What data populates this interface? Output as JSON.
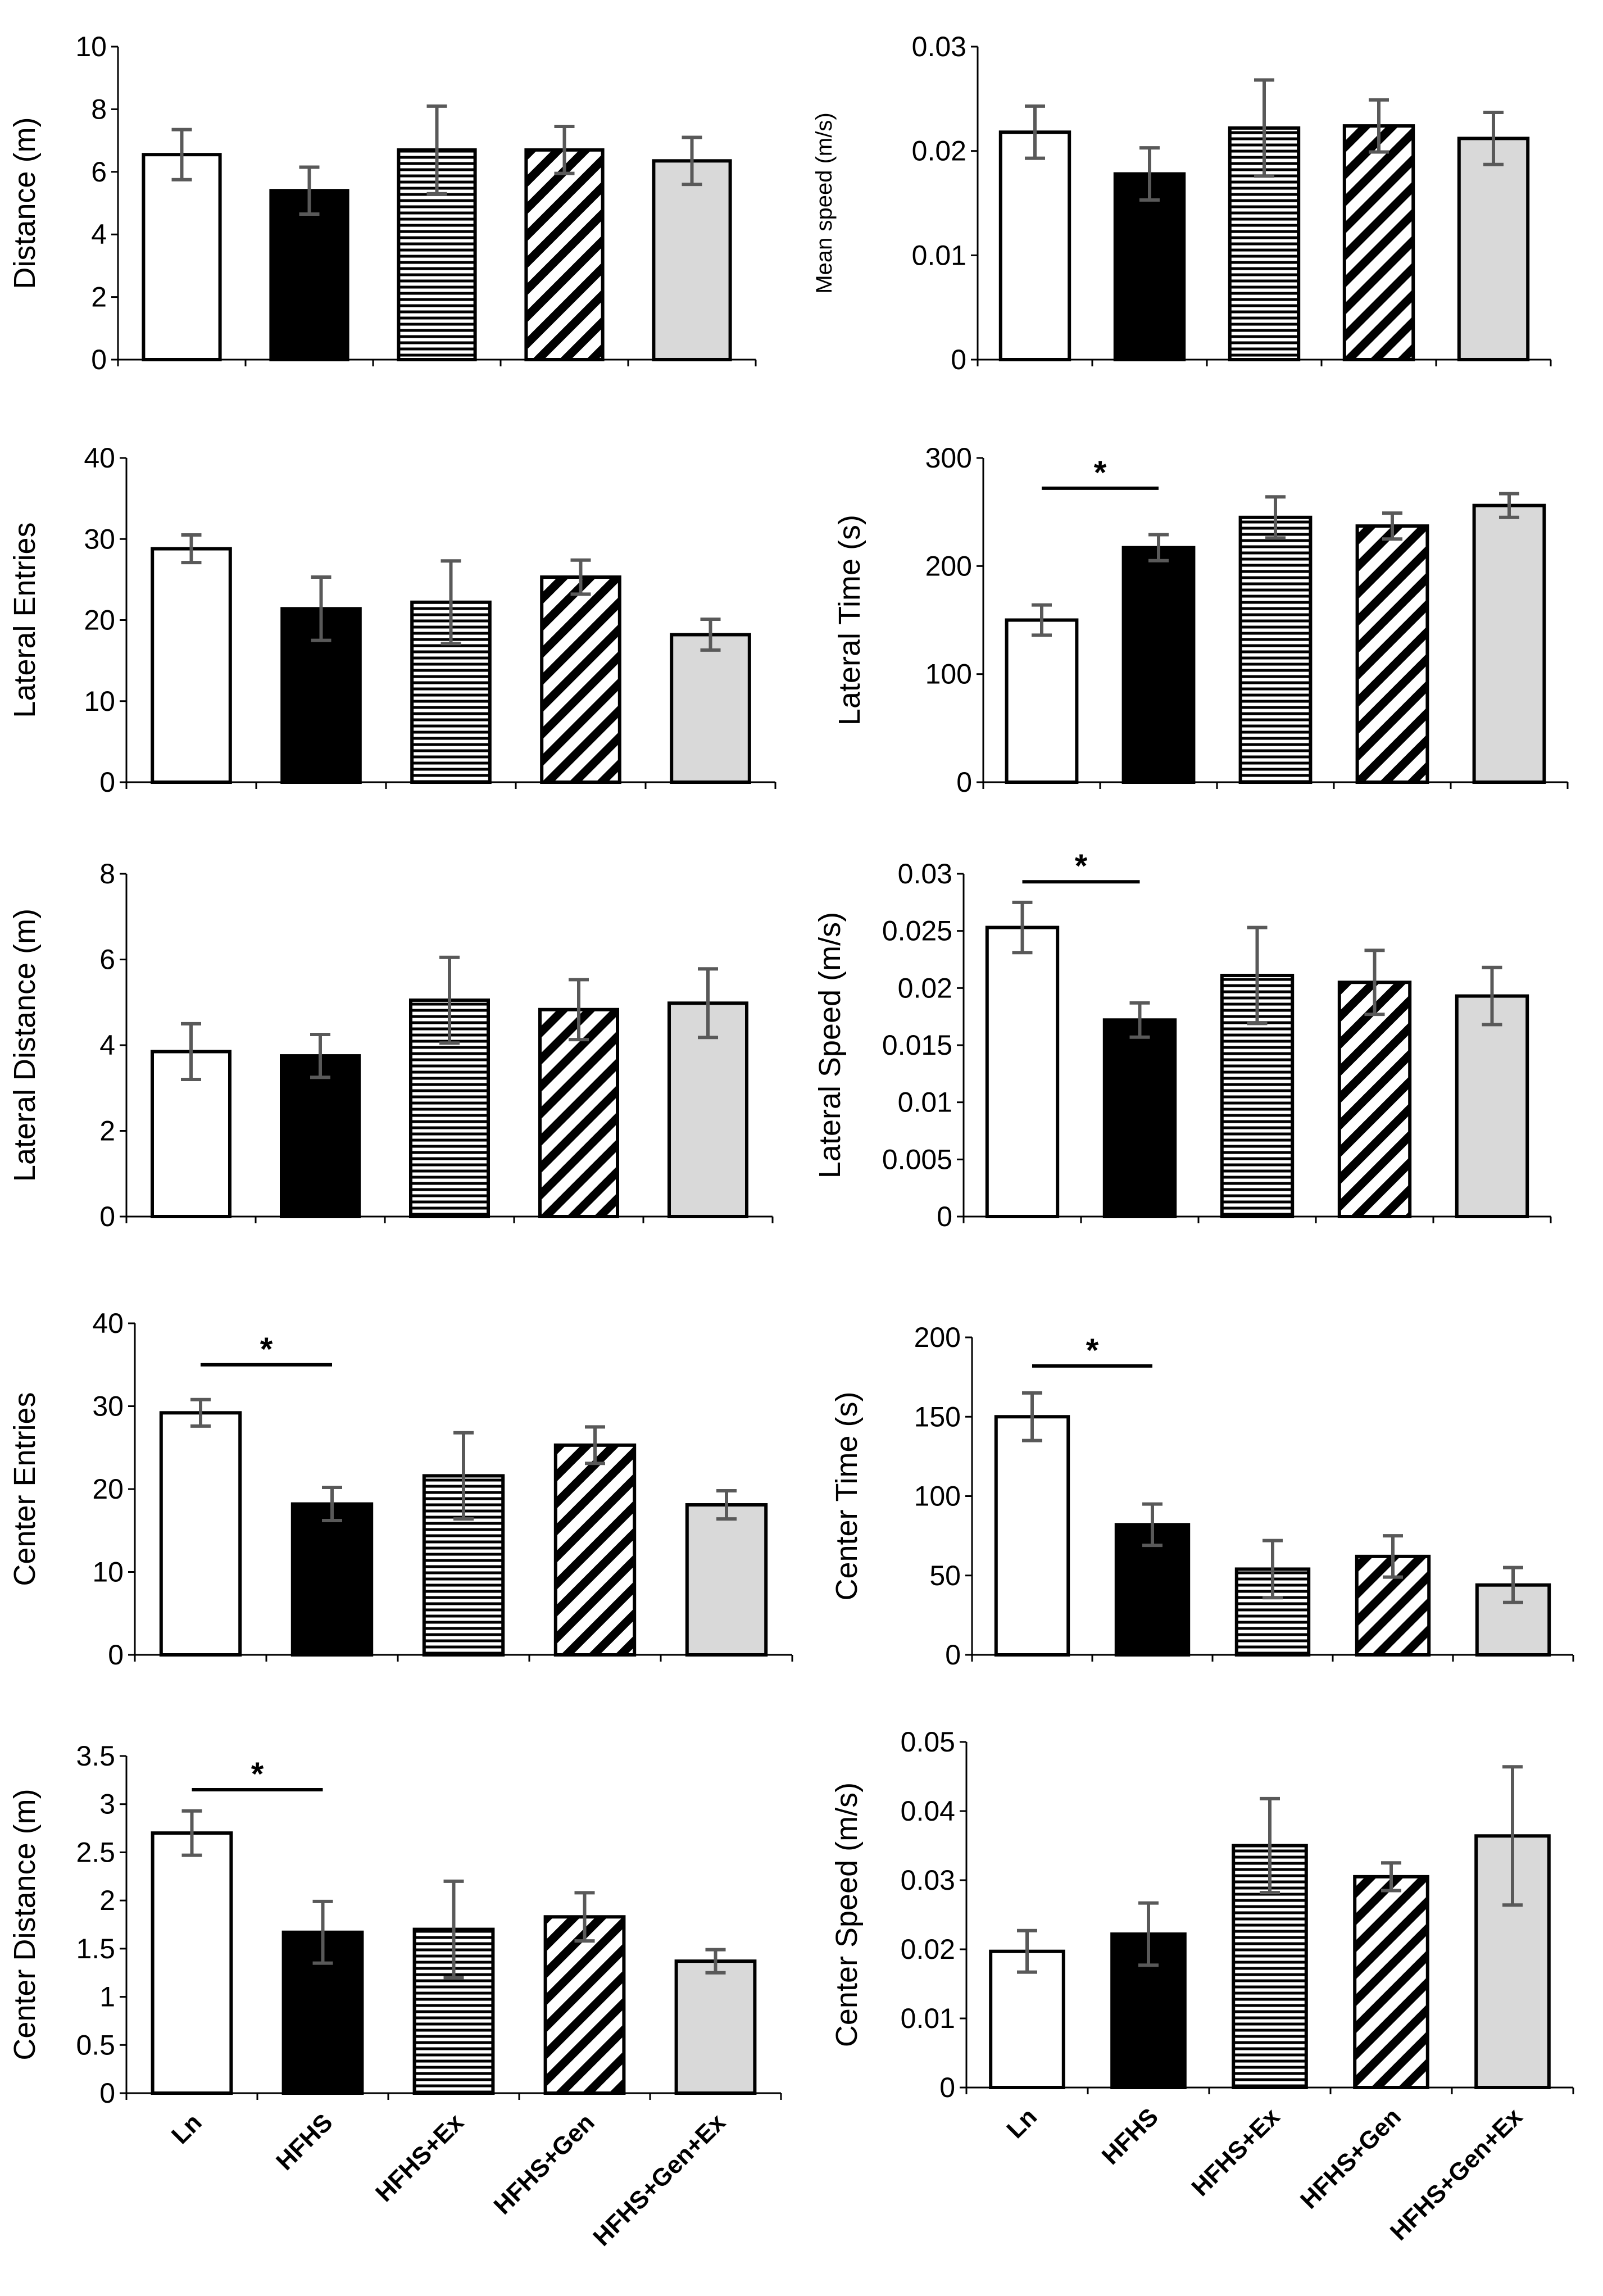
{
  "groups": [
    "Ln",
    "HFHS",
    "HFHS+Ex",
    "HFHS+Gen",
    "HFHS+Gen+Ex"
  ],
  "group_styles": [
    "white",
    "black",
    "horizontal-stripes",
    "diagonal-stripes",
    "light-gray"
  ],
  "colors": {
    "black": "#000000",
    "light_gray": "#d9d9d9",
    "error_bar": "#595959",
    "white": "#ffffff"
  },
  "chart_data": [
    {
      "type": "bar",
      "title": "",
      "xlabel": "",
      "ylabel": "Distance (m)",
      "categories": [
        "Ln",
        "HFHS",
        "HFHS+Ex",
        "HFHS+Gen",
        "HFHS+Gen+Ex"
      ],
      "values": [
        6.55,
        5.4,
        6.7,
        6.7,
        6.35
      ],
      "errors": [
        0.8,
        0.75,
        1.4,
        0.75,
        0.75
      ],
      "ylim": [
        0,
        10
      ],
      "yticks": [
        0,
        2,
        4,
        6,
        8,
        10
      ],
      "ytick_labels": [
        "0",
        "2",
        "4",
        "6",
        "8",
        "10"
      ],
      "significance": []
    },
    {
      "type": "bar",
      "title": "",
      "xlabel": "",
      "ylabel": "Mean speed (m/s)",
      "categories": [
        "Ln",
        "HFHS",
        "HFHS+Ex",
        "HFHS+Gen",
        "HFHS+Gen+Ex"
      ],
      "values": [
        0.0218,
        0.0178,
        0.0222,
        0.0224,
        0.0212
      ],
      "errors": [
        0.0025,
        0.0025,
        0.0046,
        0.0025,
        0.0025
      ],
      "ylim": [
        0,
        0.03
      ],
      "yticks": [
        0,
        0.01,
        0.02,
        0.03
      ],
      "ytick_labels": [
        "0",
        "0.01",
        "0.02",
        "0.03"
      ],
      "significance": []
    },
    {
      "type": "bar",
      "title": "",
      "xlabel": "",
      "ylabel": "Lateral Entries",
      "categories": [
        "Ln",
        "HFHS",
        "HFHS+Ex",
        "HFHS+Gen",
        "HFHS+Gen+Ex"
      ],
      "values": [
        28.8,
        21.4,
        22.2,
        25.3,
        18.2
      ],
      "errors": [
        1.7,
        3.9,
        5.1,
        2.1,
        1.9
      ],
      "ylim": [
        0,
        40
      ],
      "yticks": [
        0,
        10,
        20,
        30,
        40
      ],
      "ytick_labels": [
        "0",
        "10",
        "20",
        "30",
        "40"
      ],
      "significance": []
    },
    {
      "type": "bar",
      "title": "",
      "xlabel": "",
      "ylabel": "Lateral Time (s)",
      "categories": [
        "Ln",
        "HFHS",
        "HFHS+Ex",
        "HFHS+Gen",
        "HFHS+Gen+Ex"
      ],
      "values": [
        150,
        217,
        245,
        237,
        256
      ],
      "errors": [
        14,
        12,
        19,
        12,
        11
      ],
      "ylim": [
        0,
        300
      ],
      "yticks": [
        0,
        100,
        200,
        300
      ],
      "ytick_labels": [
        "0",
        "100",
        "200",
        "300"
      ],
      "significance": [
        {
          "from": 0,
          "to": 1,
          "level": 272,
          "label": "*"
        }
      ]
    },
    {
      "type": "bar",
      "title": "",
      "xlabel": "",
      "ylabel": "Lateral Distance (m)",
      "categories": [
        "Ln",
        "HFHS",
        "HFHS+Ex",
        "HFHS+Gen",
        "HFHS+Gen+Ex"
      ],
      "values": [
        3.85,
        3.75,
        5.05,
        4.83,
        4.98
      ],
      "errors": [
        0.65,
        0.5,
        1.0,
        0.7,
        0.8
      ],
      "ylim": [
        0,
        8
      ],
      "yticks": [
        0,
        2,
        4,
        6,
        8
      ],
      "ytick_labels": [
        "0",
        "2",
        "4",
        "6",
        "8"
      ],
      "significance": []
    },
    {
      "type": "bar",
      "title": "",
      "xlabel": "",
      "ylabel": "Lateral Speed (m/s)",
      "categories": [
        "Ln",
        "HFHS",
        "HFHS+Ex",
        "HFHS+Gen",
        "HFHS+Gen+Ex"
      ],
      "values": [
        0.0253,
        0.0172,
        0.0211,
        0.0205,
        0.0193
      ],
      "errors": [
        0.0022,
        0.0015,
        0.0042,
        0.0028,
        0.0025
      ],
      "ylim": [
        0,
        0.03
      ],
      "yticks": [
        0,
        0.005,
        0.01,
        0.015,
        0.02,
        0.025,
        0.03
      ],
      "ytick_labels": [
        "0",
        "0.005",
        "0.01",
        "0.015",
        "0.02",
        "0.025",
        "0.03"
      ],
      "significance": [
        {
          "from": 0,
          "to": 1,
          "level": 0.0293,
          "label": "*"
        }
      ]
    },
    {
      "type": "bar",
      "title": "",
      "xlabel": "",
      "ylabel": "Center Entries",
      "categories": [
        "Ln",
        "HFHS",
        "HFHS+Ex",
        "HFHS+Gen",
        "HFHS+Gen+Ex"
      ],
      "values": [
        29.2,
        18.2,
        21.6,
        25.3,
        18.1
      ],
      "errors": [
        1.6,
        2.0,
        5.2,
        2.2,
        1.7
      ],
      "ylim": [
        0,
        40
      ],
      "yticks": [
        0,
        10,
        20,
        30,
        40
      ],
      "ytick_labels": [
        "0",
        "10",
        "20",
        "30",
        "40"
      ],
      "significance": [
        {
          "from": 0,
          "to": 1,
          "level": 35,
          "label": "*"
        }
      ]
    },
    {
      "type": "bar",
      "title": "",
      "xlabel": "",
      "ylabel": "Center Time (s)",
      "categories": [
        "Ln",
        "HFHS",
        "HFHS+Ex",
        "HFHS+Gen",
        "HFHS+Gen+Ex"
      ],
      "values": [
        150,
        82,
        54,
        62,
        44
      ],
      "errors": [
        15,
        13,
        18,
        13,
        11
      ],
      "ylim": [
        0,
        200
      ],
      "yticks": [
        0,
        50,
        100,
        150,
        200
      ],
      "ytick_labels": [
        "0",
        "50",
        "100",
        "150",
        "200"
      ],
      "significance": [
        {
          "from": 0,
          "to": 1,
          "level": 182,
          "label": "*"
        }
      ]
    },
    {
      "type": "bar",
      "title": "",
      "xlabel": "",
      "ylabel": "Center Distance (m)",
      "categories": [
        "Ln",
        "HFHS",
        "HFHS+Ex",
        "HFHS+Gen",
        "HFHS+Gen+Ex"
      ],
      "values": [
        2.7,
        1.67,
        1.7,
        1.83,
        1.37
      ],
      "errors": [
        0.23,
        0.32,
        0.5,
        0.25,
        0.12
      ],
      "ylim": [
        0,
        3.5
      ],
      "yticks": [
        0,
        0.5,
        1,
        1.5,
        2,
        2.5,
        3,
        3.5
      ],
      "ytick_labels": [
        "0",
        "0.5",
        "1",
        "1.5",
        "2",
        "2.5",
        "3",
        "3.5"
      ],
      "significance": [
        {
          "from": 0,
          "to": 1,
          "level": 3.15,
          "label": "*"
        }
      ]
    },
    {
      "type": "bar",
      "title": "",
      "xlabel": "",
      "ylabel": "Center Speed (m/s)",
      "categories": [
        "Ln",
        "HFHS",
        "HFHS+Ex",
        "HFHS+Gen",
        "HFHS+Gen+Ex"
      ],
      "values": [
        0.0197,
        0.0222,
        0.035,
        0.0305,
        0.0364
      ],
      "errors": [
        0.003,
        0.0045,
        0.0068,
        0.002,
        0.01
      ],
      "ylim": [
        0,
        0.05
      ],
      "yticks": [
        0,
        0.01,
        0.02,
        0.03,
        0.04,
        0.05
      ],
      "ytick_labels": [
        "0",
        "0.01",
        "0.02",
        "0.03",
        "0.04",
        "0.05"
      ],
      "significance": []
    }
  ]
}
